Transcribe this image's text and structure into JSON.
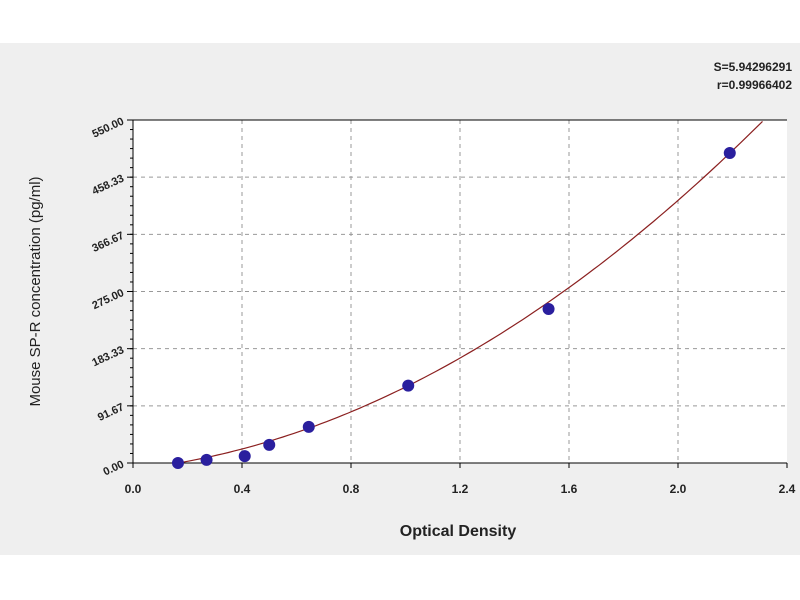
{
  "chart_data": {
    "type": "scatter",
    "title": "",
    "xlabel": "Optical Density",
    "ylabel": "Mouse SP-R concentration (pg/ml)",
    "xlim": [
      0,
      2.4
    ],
    "ylim": [
      0,
      550
    ],
    "xticks": [
      "0.0",
      "0.4",
      "0.8",
      "1.2",
      "1.6",
      "2.0",
      "2.4"
    ],
    "xtick_values": [
      0,
      0.4,
      0.8,
      1.2,
      1.6,
      2.0,
      2.4
    ],
    "yticks": [
      "0.00",
      "91.67",
      "183.33",
      "275.00",
      "366.67",
      "458.33",
      "550.00"
    ],
    "ytick_values": [
      0,
      91.67,
      183.33,
      275,
      366.67,
      458.33,
      550
    ],
    "grid": true,
    "points": {
      "x": [
        0.165,
        0.27,
        0.41,
        0.5,
        0.645,
        1.01,
        1.525,
        2.19
      ],
      "y": [
        0,
        5,
        11,
        29,
        58,
        124,
        247,
        497
      ]
    },
    "fit": {
      "type": "quadratic",
      "coefficients": [
        83.6,
        48.5,
        -10.3
      ],
      "x_range": [
        0.15,
        2.31
      ]
    },
    "stats": {
      "s": "S=5.94296291",
      "r": "r=0.99966402"
    },
    "colors": {
      "point": "#2a1f9e",
      "curve": "#8b2020",
      "grid": "#999999",
      "panel": "#efefef"
    }
  }
}
